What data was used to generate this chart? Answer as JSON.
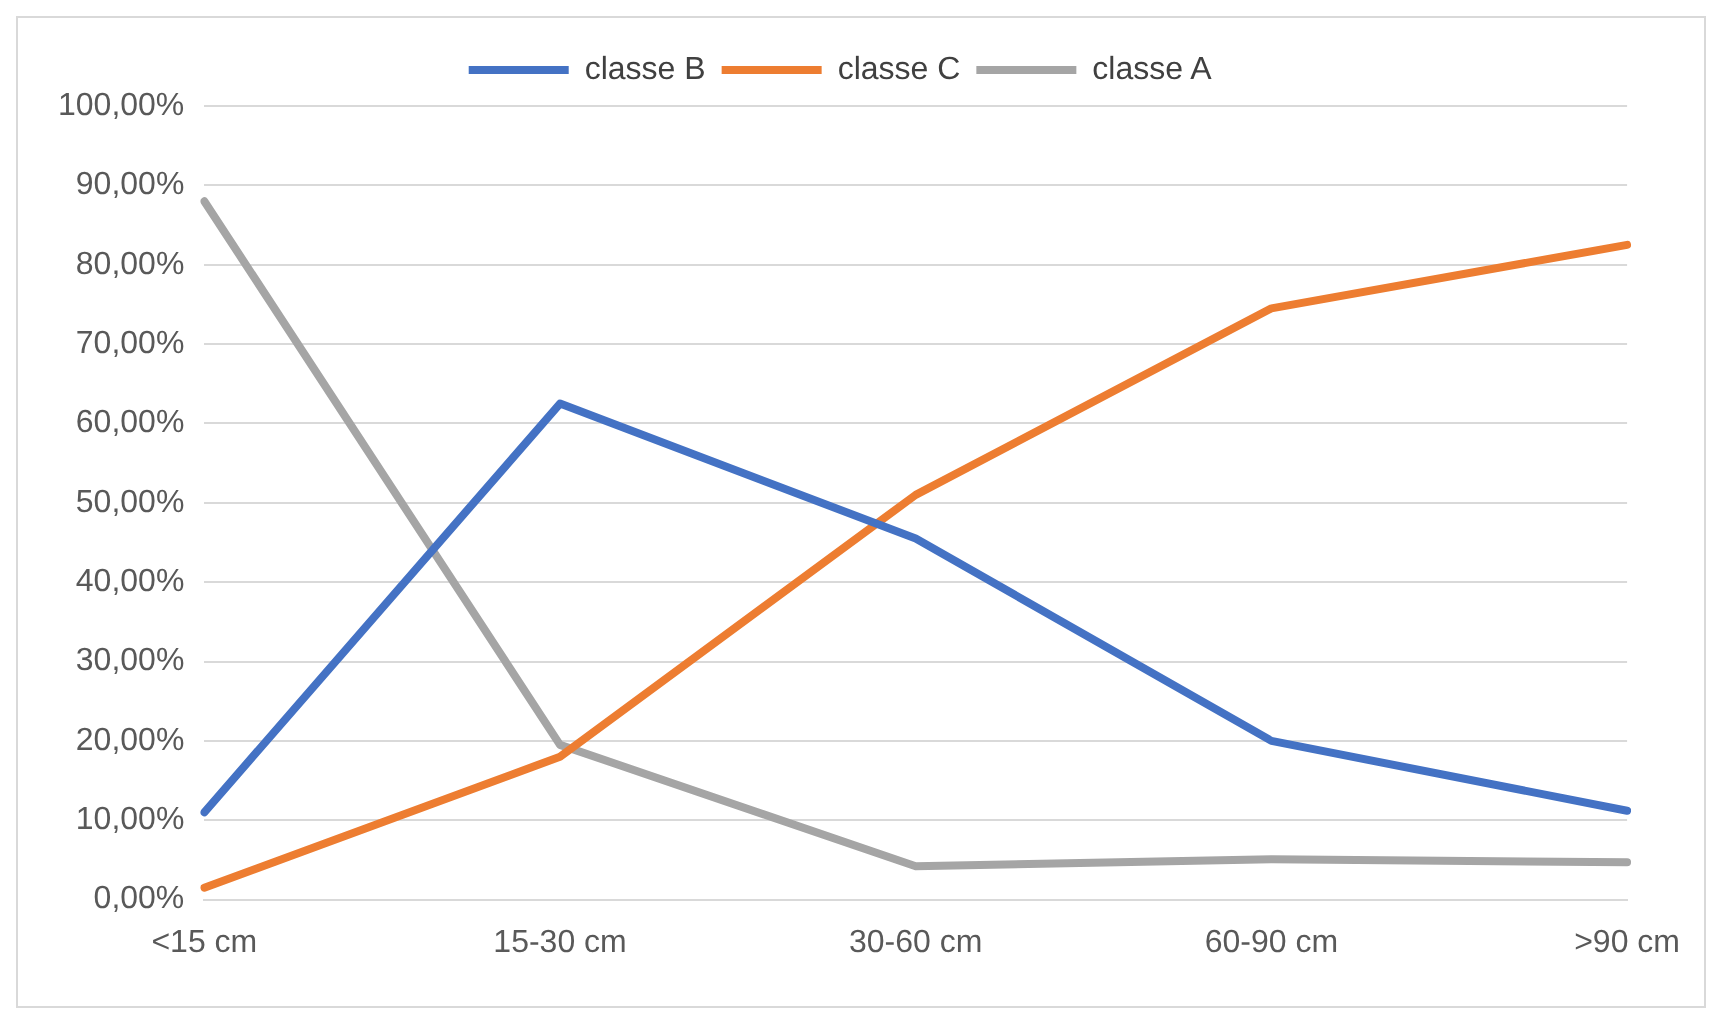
{
  "chart_data": {
    "type": "line",
    "categories": [
      "<15 cm",
      "15-30 cm",
      "30-60 cm",
      "60-90 cm",
      ">90 cm"
    ],
    "series": [
      {
        "name": "classe B",
        "color": "#4472c4",
        "values": [
          11.0,
          62.5,
          45.5,
          20.0,
          11.2
        ]
      },
      {
        "name": "classe C",
        "color": "#ed7d31",
        "values": [
          1.5,
          18.0,
          51.0,
          74.5,
          82.5
        ]
      },
      {
        "name": "classe A",
        "color": "#a5a5a5",
        "values": [
          88.0,
          19.5,
          4.2,
          5.1,
          4.7
        ]
      }
    ],
    "ylim": [
      0,
      100
    ],
    "yticks": [
      {
        "value": 0,
        "label": "0,00%"
      },
      {
        "value": 10,
        "label": "10,00%"
      },
      {
        "value": 20,
        "label": "20,00%"
      },
      {
        "value": 30,
        "label": "30,00%"
      },
      {
        "value": 40,
        "label": "40,00%"
      },
      {
        "value": 50,
        "label": "50,00%"
      },
      {
        "value": 60,
        "label": "60,00%"
      },
      {
        "value": 70,
        "label": "70,00%"
      },
      {
        "value": 80,
        "label": "80,00%"
      },
      {
        "value": 90,
        "label": "90,00%"
      },
      {
        "value": 100,
        "label": "100,00%"
      }
    ],
    "grid": "y",
    "legend": "top",
    "marker": "none",
    "line_style": "solid"
  }
}
